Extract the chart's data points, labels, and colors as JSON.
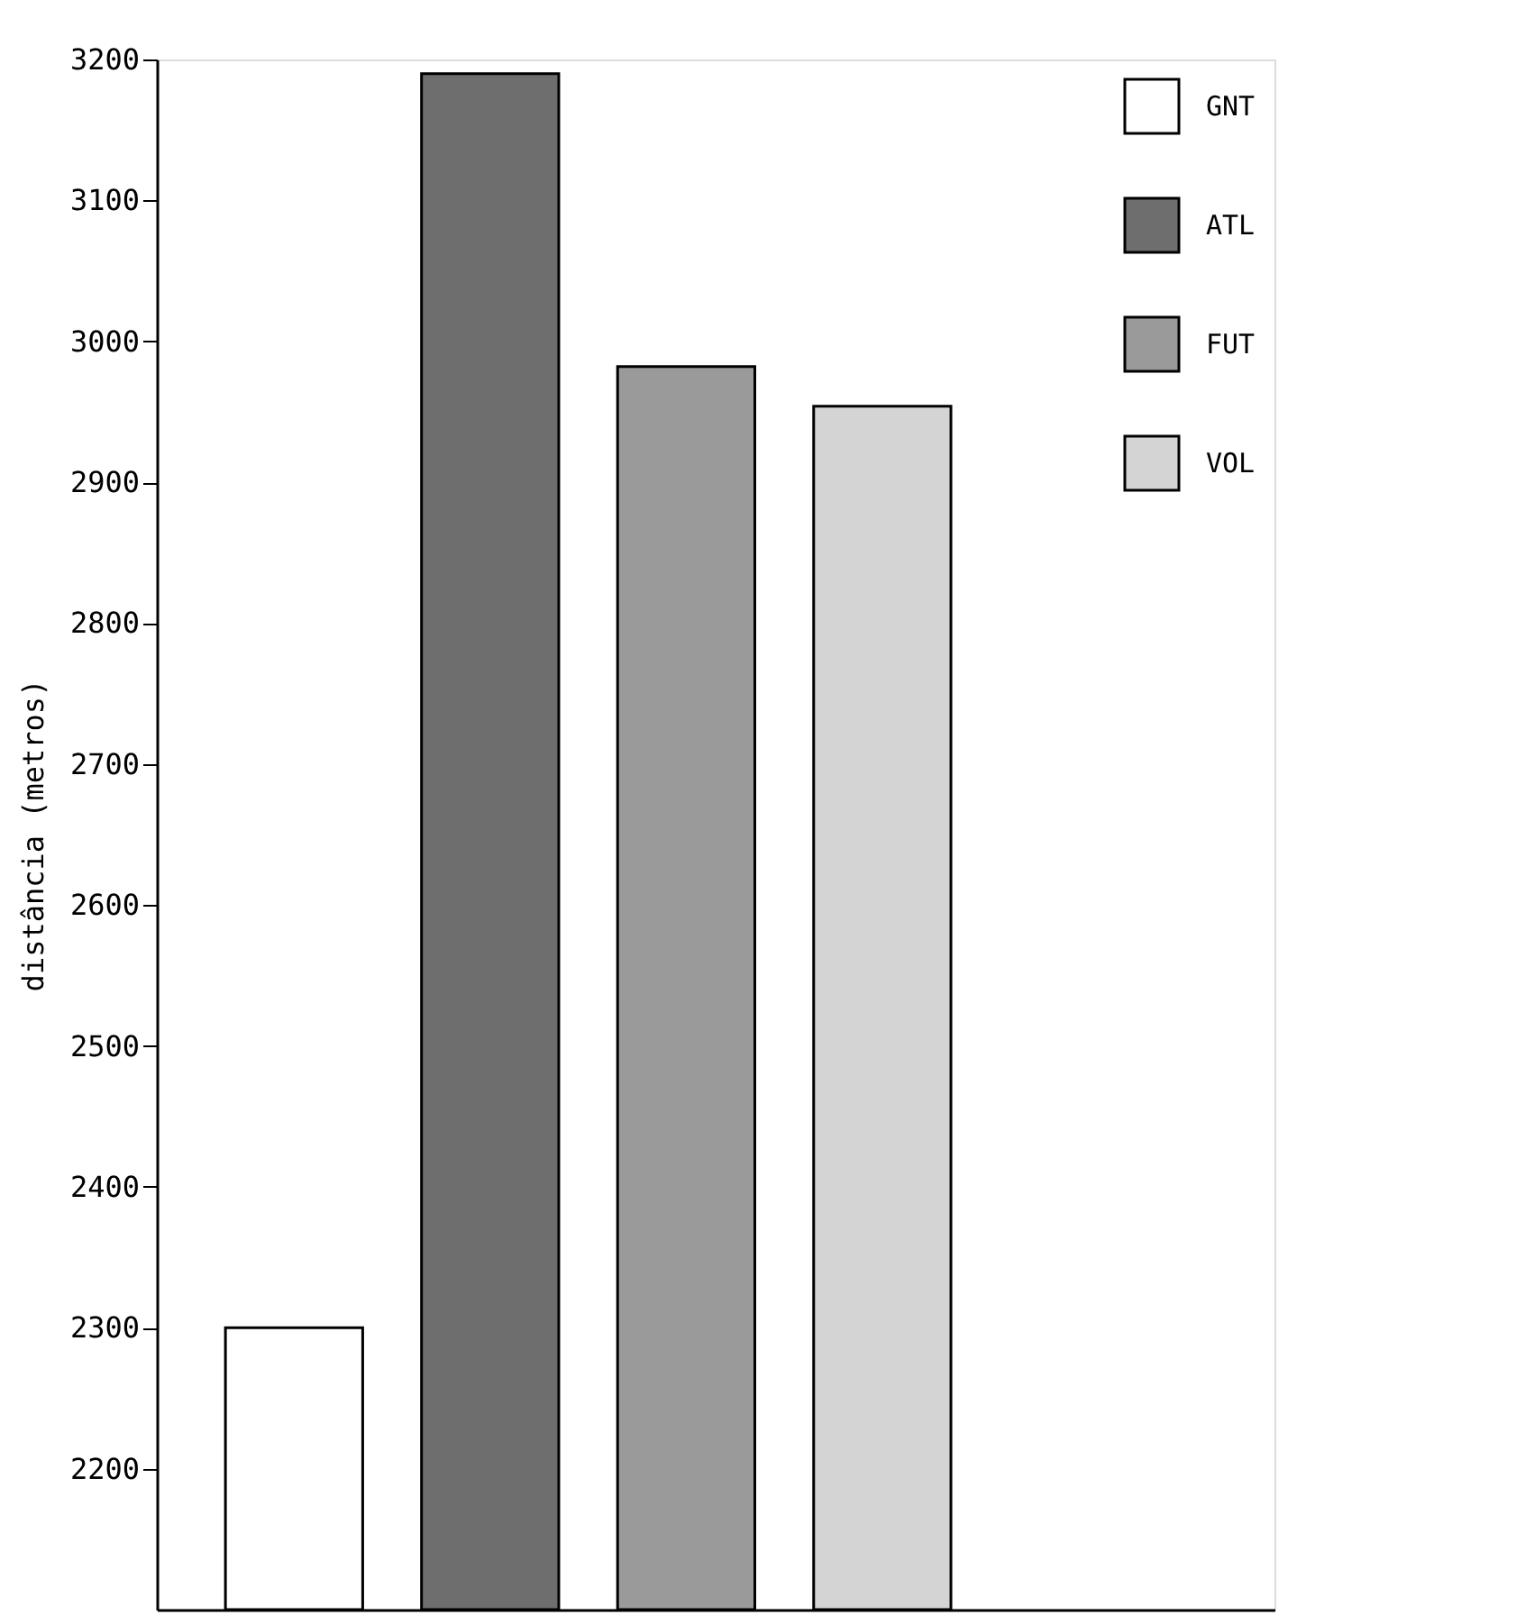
{
  "chart_data": {
    "type": "bar",
    "ylabel": "distância (metros)",
    "categories": [
      null
    ],
    "series": [
      {
        "name": "GNT",
        "color": "#ffffff",
        "values": [
          2300
        ]
      },
      {
        "name": "ATL",
        "color": "#6e6e6e",
        "values": [
          3190
        ]
      },
      {
        "name": "FUT",
        "color": "#9a9a9a",
        "values": [
          2982
        ]
      },
      {
        "name": "VOL",
        "color": "#d4d4d4",
        "values": [
          2954
        ]
      }
    ],
    "ylim": [
      2100,
      3200
    ],
    "yticks": [
      2200,
      2300,
      2400,
      2500,
      2600,
      2700,
      2800,
      2900,
      3000,
      3100,
      3200
    ],
    "tick_labels": "y",
    "grid": false,
    "legend": "top right"
  }
}
